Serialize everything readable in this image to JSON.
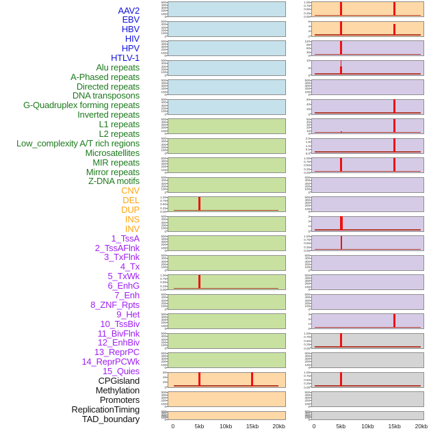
{
  "palette": {
    "label": {
      "virus": "#1212dd",
      "repeat": "#1e7b1e",
      "sv": "#ffa510",
      "chromhmm": "#a020f0",
      "other": "#111111"
    },
    "bg": {
      "virus": "#c5e1ec",
      "repeat": "#c8e1a0",
      "sv": "#fed8a6",
      "chromhmm": "#d6cbe7",
      "other": "#d4d4d4"
    },
    "spike": "#ee1111",
    "baseline": "#b04030",
    "box_border": "#8e8e8e",
    "tick_text": "#444444",
    "axis_text": "#222222"
  },
  "chart_data": {
    "type": "line",
    "description": "Grid of 44 mini profile plots (22 rows x 2 columns, column-major order) of signal over a 0-20kb window; red peaks mark enrichment at 5kb and 15kb.",
    "x_ticks": [
      "0",
      "5kb",
      "10kb",
      "15kb",
      "20kb"
    ],
    "x_range_kb": [
      0,
      20
    ],
    "ytick_presets": {
      "std": [
        "500",
        "400",
        "300",
        "200",
        "100",
        "0"
      ],
      "pct": [
        "1.00",
        "0.75",
        "0.50",
        "0.25",
        "0.00"
      ]
    },
    "tracks": [
      {
        "label": "AAV2",
        "group": "virus",
        "col": "left",
        "row": 0,
        "yticks": "std",
        "baseline": false,
        "peaks": []
      },
      {
        "label": "EBV",
        "group": "virus",
        "col": "left",
        "row": 1,
        "yticks": "std",
        "baseline": false,
        "peaks": []
      },
      {
        "label": "HBV",
        "group": "virus",
        "col": "left",
        "row": 2,
        "yticks": "std",
        "baseline": false,
        "peaks": []
      },
      {
        "label": "HIV",
        "group": "virus",
        "col": "left",
        "row": 3,
        "yticks": "std",
        "baseline": false,
        "peaks": []
      },
      {
        "label": "HPV",
        "group": "virus",
        "col": "left",
        "row": 4,
        "yticks": "std",
        "baseline": false,
        "peaks": []
      },
      {
        "label": "HTLV-1",
        "group": "virus",
        "col": "left",
        "row": 5,
        "yticks": "std",
        "baseline": false,
        "peaks": []
      },
      {
        "label": "Alu repeats",
        "group": "repeat",
        "col": "left",
        "row": 6,
        "yticks": "std",
        "baseline": false,
        "peaks": []
      },
      {
        "label": "A-Phased repeats",
        "group": "repeat",
        "col": "left",
        "row": 7,
        "yticks": "std",
        "baseline": false,
        "peaks": []
      },
      {
        "label": "Directed repeats",
        "group": "repeat",
        "col": "left",
        "row": 8,
        "yticks": "std",
        "baseline": false,
        "peaks": []
      },
      {
        "label": "DNA transposons",
        "group": "repeat",
        "col": "left",
        "row": 9,
        "yticks": "std",
        "baseline": false,
        "peaks": []
      },
      {
        "label": "G-Quadruplex forming repeats",
        "group": "repeat",
        "col": "left",
        "row": 10,
        "yticks": "pct",
        "baseline": true,
        "peaks": [
          {
            "x_kb": 5,
            "h": 1
          }
        ]
      },
      {
        "label": "Inverted repeats",
        "group": "repeat",
        "col": "left",
        "row": 11,
        "yticks": "std",
        "baseline": false,
        "peaks": []
      },
      {
        "label": "L1 repeats",
        "group": "repeat",
        "col": "left",
        "row": 12,
        "yticks": "std",
        "baseline": false,
        "peaks": []
      },
      {
        "label": "L2 repeats",
        "group": "repeat",
        "col": "left",
        "row": 13,
        "yticks": "std",
        "baseline": false,
        "peaks": []
      },
      {
        "label": "Low_complexity A/T rich regions",
        "group": "repeat",
        "col": "left",
        "row": 14,
        "yticks": "pct",
        "baseline": true,
        "peaks": [
          {
            "x_kb": 5,
            "h": 1
          }
        ]
      },
      {
        "label": "Microsatellites",
        "group": "repeat",
        "col": "left",
        "row": 15,
        "yticks": "std",
        "baseline": false,
        "peaks": []
      },
      {
        "label": "MIR repeats",
        "group": "repeat",
        "col": "left",
        "row": 16,
        "yticks": "std",
        "baseline": false,
        "peaks": []
      },
      {
        "label": "Mirror repeats",
        "group": "repeat",
        "col": "left",
        "row": 17,
        "yticks": "std",
        "baseline": false,
        "peaks": []
      },
      {
        "label": "Z-DNA motifs",
        "group": "repeat",
        "col": "left",
        "row": 18,
        "yticks": "std",
        "baseline": false,
        "peaks": []
      },
      {
        "label": "CNV",
        "group": "sv",
        "col": "left",
        "row": 19,
        "yticks": [
          "60",
          "40",
          "20",
          "0"
        ],
        "baseline": true,
        "peaks": [
          {
            "x_kb": 5,
            "h": 1
          },
          {
            "x_kb": 15,
            "h": 1
          }
        ]
      },
      {
        "label": "DEL",
        "group": "sv",
        "col": "left",
        "row": 20,
        "yticks": "std",
        "baseline": false,
        "peaks": []
      },
      {
        "label": "DUP",
        "group": "sv",
        "col": "left",
        "row": 21,
        "yticks": "std",
        "baseline": false,
        "peaks": []
      },
      {
        "label": "INS",
        "group": "sv",
        "col": "right",
        "row": 0,
        "yticks": "pct",
        "baseline": true,
        "peaks": [
          {
            "x_kb": 5,
            "h": 1
          },
          {
            "x_kb": 15,
            "h": 1
          }
        ]
      },
      {
        "label": "INV",
        "group": "sv",
        "col": "right",
        "row": 1,
        "yticks": [
          "6",
          "4",
          "2",
          "0"
        ],
        "baseline": true,
        "peaks": [
          {
            "x_kb": 5,
            "h": 1
          },
          {
            "x_kb": 15,
            "h": 0.83
          }
        ]
      },
      {
        "label": "1_TssA",
        "group": "chromhmm",
        "col": "right",
        "row": 2,
        "yticks": [
          "120",
          "90",
          "60",
          "30",
          "0"
        ],
        "baseline": true,
        "peaks": [
          {
            "x_kb": 5,
            "h": 1
          }
        ]
      },
      {
        "label": "2_TssAFlnk",
        "group": "chromhmm",
        "col": "right",
        "row": 3,
        "yticks": [
          "10",
          "5",
          "0"
        ],
        "baseline": true,
        "peaks": [
          {
            "x_kb": 5,
            "h": 0.55,
            "w": 3
          },
          {
            "x_kb": 5,
            "h": 1,
            "w": 1
          }
        ]
      },
      {
        "label": "3_TxFlnk",
        "group": "chromhmm",
        "col": "right",
        "row": 4,
        "yticks": "std",
        "baseline": false,
        "peaks": []
      },
      {
        "label": "4_Tx",
        "group": "chromhmm",
        "col": "right",
        "row": 5,
        "yticks": [
          "60",
          "40",
          "20",
          "0"
        ],
        "baseline": true,
        "peaks": [
          {
            "x_kb": 15,
            "h": 1
          }
        ]
      },
      {
        "label": "5_TxWk",
        "group": "chromhmm",
        "col": "right",
        "row": 6,
        "yticks": [
          "50",
          "40",
          "30",
          "20",
          "10",
          "0"
        ],
        "baseline": true,
        "peaks": [
          {
            "x_kb": 5,
            "h": 0.12,
            "w": 2
          },
          {
            "x_kb": 15,
            "h": 1
          }
        ]
      },
      {
        "label": "6_EnhG",
        "group": "chromhmm",
        "col": "right",
        "row": 7,
        "yticks": [
          "2.0",
          "1.5",
          "1.0",
          "0.5",
          "0.0"
        ],
        "baseline": true,
        "peaks": [
          {
            "x_kb": 15,
            "h": 1
          }
        ]
      },
      {
        "label": "7_Enh",
        "group": "chromhmm",
        "col": "right",
        "row": 8,
        "yticks": "pct",
        "baseline": true,
        "peaks": [
          {
            "x_kb": 5,
            "h": 1
          },
          {
            "x_kb": 15,
            "h": 1
          }
        ]
      },
      {
        "label": "8_ZNF_Rpts",
        "group": "chromhmm",
        "col": "right",
        "row": 9,
        "yticks": "std",
        "baseline": false,
        "peaks": []
      },
      {
        "label": "9_Het",
        "group": "chromhmm",
        "col": "right",
        "row": 10,
        "yticks": "std",
        "baseline": false,
        "peaks": []
      },
      {
        "label": "10_TssBiv",
        "group": "chromhmm",
        "col": "right",
        "row": 11,
        "yticks": [
          "3",
          "2",
          "1",
          "0"
        ],
        "baseline": true,
        "peaks": [
          {
            "x_kb": 5,
            "h": 1,
            "w": 4
          }
        ]
      },
      {
        "label": "11_BivFlnk",
        "group": "chromhmm",
        "col": "right",
        "row": 12,
        "yticks": "pct",
        "baseline": true,
        "peaks": [
          {
            "x_kb": 5,
            "h": 1,
            "w": 1.5
          }
        ]
      },
      {
        "label": "12_EnhBiv",
        "group": "chromhmm",
        "col": "right",
        "row": 13,
        "yticks": "std",
        "baseline": false,
        "peaks": []
      },
      {
        "label": "13_ReprPC",
        "group": "chromhmm",
        "col": "right",
        "row": 14,
        "yticks": "std",
        "baseline": false,
        "peaks": []
      },
      {
        "label": "14_ReprPCWk",
        "group": "chromhmm",
        "col": "right",
        "row": 15,
        "yticks": "std",
        "baseline": false,
        "peaks": []
      },
      {
        "label": "15_Quies",
        "group": "chromhmm",
        "col": "right",
        "row": 16,
        "yticks": [
          "3",
          "2",
          "1",
          "0"
        ],
        "baseline": true,
        "peaks": [
          {
            "x_kb": 15,
            "h": 1
          }
        ]
      },
      {
        "label": "CPGisland",
        "group": "other",
        "col": "right",
        "row": 17,
        "yticks": "pct",
        "baseline": true,
        "peaks": [
          {
            "x_kb": 5,
            "h": 1
          }
        ]
      },
      {
        "label": "Methylation",
        "group": "other",
        "col": "right",
        "row": 18,
        "yticks": "std",
        "baseline": false,
        "peaks": []
      },
      {
        "label": "Promoters",
        "group": "other",
        "col": "right",
        "row": 19,
        "yticks": "pct",
        "baseline": true,
        "peaks": [
          {
            "x_kb": 5,
            "h": 1
          }
        ]
      },
      {
        "label": "ReplicationTiming",
        "group": "other",
        "col": "right",
        "row": 20,
        "yticks": "std",
        "baseline": false,
        "peaks": []
      },
      {
        "label": "TAD_boundary",
        "group": "other",
        "col": "right",
        "row": 21,
        "yticks": "std",
        "baseline": false,
        "peaks": []
      }
    ]
  }
}
